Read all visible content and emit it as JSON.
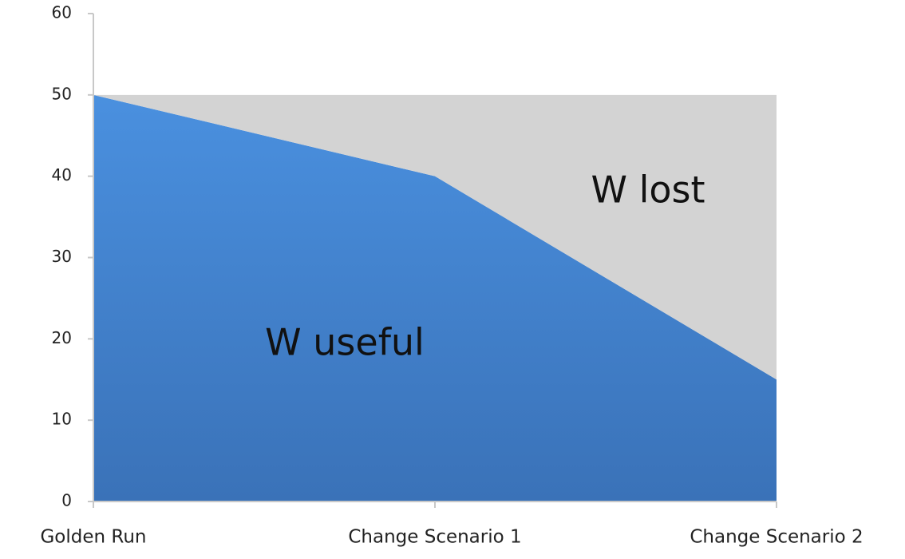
{
  "chart_data": {
    "type": "area",
    "stacked": true,
    "categories": [
      "Golden Run",
      "Change Scenario 1",
      "Change Scenario 2"
    ],
    "series": [
      {
        "name": "W useful",
        "values": [
          50,
          40,
          15
        ],
        "color": "#3f7fca"
      },
      {
        "name": "W lost",
        "values": [
          0,
          10,
          35
        ],
        "color": "#d3d3d3"
      }
    ],
    "ylim": [
      0,
      60
    ],
    "yticks": [
      0,
      10,
      20,
      30,
      40,
      50,
      60
    ],
    "ytick_labels": [
      "0",
      "10",
      "20",
      "30",
      "40",
      "50",
      "60"
    ],
    "xlabel": "",
    "ylabel": "",
    "title": "",
    "grid": false,
    "legend": "none",
    "axis_color": "#c8c8c8"
  }
}
